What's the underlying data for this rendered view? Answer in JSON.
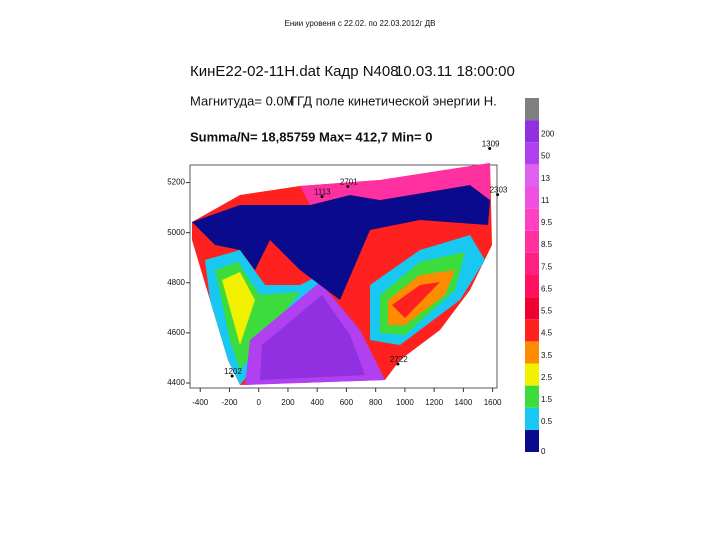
{
  "chart_data": {
    "type": "contour",
    "title": "Ении уровеня с 22.02. по 22.03.2012г ДВ",
    "header": [
      "КинE22-02-11Н.dat Кадр N408",
      "10.03.11 18:00:00",
      "Магнитуда= 0.0М",
      "ГГД поле кинетической энергии Н.",
      "Summa/N= 18,85759 Max= 412,7 Min= 0"
    ],
    "xlim": [
      -470,
      1630
    ],
    "ylim": [
      4380,
      5270
    ],
    "xticks": [
      -400,
      -200,
      0,
      200,
      400,
      600,
      800,
      1000,
      1200,
      1400,
      1600
    ],
    "yticks": [
      5200,
      5000,
      4800,
      4600,
      4400
    ],
    "stations": [
      {
        "label": "1309",
        "x": 1580,
        "y": 5336
      },
      {
        "label": "2701",
        "x": 610,
        "y": 5184
      },
      {
        "label": "1113",
        "x": 433,
        "y": 5144
      },
      {
        "label": "2303",
        "x": 1634,
        "y": 5152
      },
      {
        "label": "2722",
        "x": 952,
        "y": 4476
      },
      {
        "label": "1202",
        "x": -182,
        "y": 4428
      }
    ],
    "colorbar": {
      "levels": [
        0,
        0.5,
        1.5,
        2.5,
        3.5,
        4.5,
        5.5,
        6.5,
        7.5,
        8.5,
        9.5,
        11,
        13,
        50,
        200
      ],
      "colors": [
        "#0a0a8c",
        "#19c8f0",
        "#3cdc3c",
        "#f0f000",
        "#ff8c00",
        "#ff2020",
        "#f00030",
        "#ff1060",
        "#ff2080",
        "#ff30a0",
        "#ff40c0",
        "#f050e0",
        "#e060f0",
        "#b040f0",
        "#9030e0",
        "#808080"
      ]
    }
  }
}
